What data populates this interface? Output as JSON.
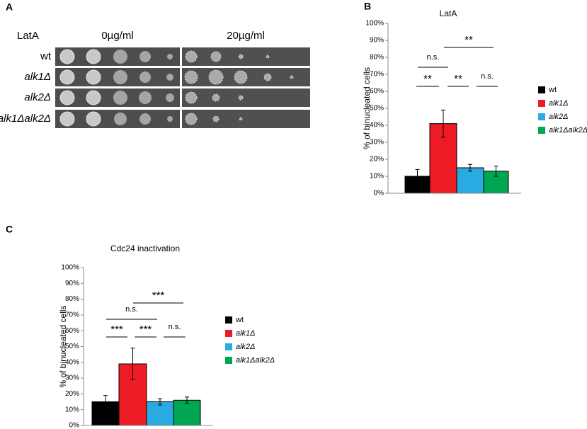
{
  "panel_a": {
    "panel_label": "A",
    "treatment": "LatA",
    "concentrations": [
      "0µg/ml",
      "20µg/ml"
    ],
    "strains": [
      "wt",
      "alk1Δ",
      "alk2Δ",
      "alk1Δalk2Δ"
    ]
  },
  "chart_data": [
    {
      "type": "bar",
      "panel_label": "B",
      "title": "LatA",
      "y_label": "% of binucleated cells",
      "categories": [
        "wt",
        "alk1Δ",
        "alk2Δ",
        "alk1Δalk2Δ"
      ],
      "values": [
        10,
        41,
        15,
        13
      ],
      "errors": [
        4,
        8,
        2,
        3
      ],
      "colors": [
        "#000000",
        "#ed1c24",
        "#29abe2",
        "#00a651"
      ],
      "ylim": [
        0,
        100
      ],
      "yticks": [
        {
          "value": 0,
          "label": "0%"
        },
        {
          "value": 10,
          "label": "10%"
        },
        {
          "value": 20,
          "label": "20%"
        },
        {
          "value": 30,
          "label": "30%"
        },
        {
          "value": 40,
          "label": "40%"
        },
        {
          "value": 50,
          "label": "50%"
        },
        {
          "value": 60,
          "label": "60%"
        },
        {
          "value": 70,
          "label": "70%"
        },
        {
          "value": 80,
          "label": "80%"
        },
        {
          "value": 90,
          "label": "90%"
        },
        {
          "value": 100,
          "label": "100%"
        }
      ],
      "annotations": [
        "**",
        "n.s.",
        "**",
        "**",
        "n.s."
      ]
    },
    {
      "type": "bar",
      "panel_label": "C",
      "title": "Cdc24 inactivation",
      "y_label": "% of binucleated cells",
      "categories": [
        "wt",
        "alk1Δ",
        "alk2Δ",
        "alk1Δalk2Δ"
      ],
      "values": [
        15,
        39,
        15,
        16
      ],
      "errors": [
        4,
        10,
        2,
        2
      ],
      "colors": [
        "#000000",
        "#ed1c24",
        "#29abe2",
        "#00a651"
      ],
      "ylim": [
        0,
        100
      ],
      "yticks": [
        {
          "value": 0,
          "label": "0%"
        },
        {
          "value": 10,
          "label": "10%"
        },
        {
          "value": 20,
          "label": "20%"
        },
        {
          "value": 30,
          "label": "30%"
        },
        {
          "value": 40,
          "label": "40%"
        },
        {
          "value": 50,
          "label": "50%"
        },
        {
          "value": 60,
          "label": "60%"
        },
        {
          "value": 70,
          "label": "70%"
        },
        {
          "value": 80,
          "label": "80%"
        },
        {
          "value": 90,
          "label": "90%"
        },
        {
          "value": 100,
          "label": "100%"
        }
      ],
      "annotations": [
        "***",
        "n.s.",
        "***",
        "***",
        "n.s."
      ]
    }
  ]
}
